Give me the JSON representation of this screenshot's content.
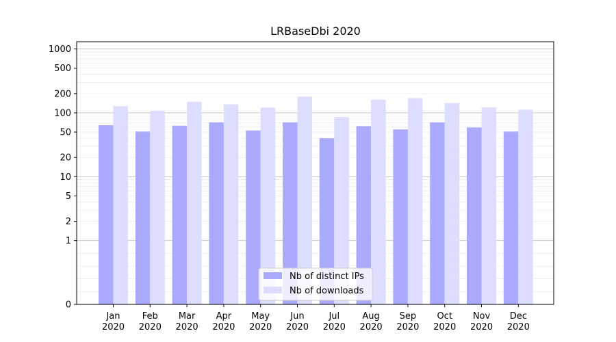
{
  "chart_data": {
    "type": "bar",
    "title": "LRBaseDbi 2020",
    "xlabel": "",
    "ylabel": "",
    "y_scale": "symlog",
    "ylim": [
      0,
      1300
    ],
    "y_ticks": [
      {
        "value": 0,
        "label": "0"
      },
      {
        "value": 1,
        "label": "1"
      },
      {
        "value": 2,
        "label": "2"
      },
      {
        "value": 5,
        "label": "5"
      },
      {
        "value": 10,
        "label": "10"
      },
      {
        "value": 20,
        "label": "20"
      },
      {
        "value": 50,
        "label": "50"
      },
      {
        "value": 100,
        "label": "100"
      },
      {
        "value": 200,
        "label": "200"
      },
      {
        "value": 500,
        "label": "500"
      },
      {
        "value": 1000,
        "label": "1000"
      }
    ],
    "grid": true,
    "categories": [
      {
        "month": "Jan",
        "year": "2020"
      },
      {
        "month": "Feb",
        "year": "2020"
      },
      {
        "month": "Mar",
        "year": "2020"
      },
      {
        "month": "Apr",
        "year": "2020"
      },
      {
        "month": "May",
        "year": "2020"
      },
      {
        "month": "Jun",
        "year": "2020"
      },
      {
        "month": "Jul",
        "year": "2020"
      },
      {
        "month": "Aug",
        "year": "2020"
      },
      {
        "month": "Sep",
        "year": "2020"
      },
      {
        "month": "Oct",
        "year": "2020"
      },
      {
        "month": "Nov",
        "year": "2020"
      },
      {
        "month": "Dec",
        "year": "2020"
      }
    ],
    "series": [
      {
        "name": "Nb of distinct IPs",
        "color": "#aaaaff",
        "values": [
          64,
          51,
          63,
          71,
          53,
          71,
          40,
          62,
          55,
          71,
          59,
          51
        ]
      },
      {
        "name": "Nb of downloads",
        "color": "#ddddff",
        "values": [
          127,
          108,
          149,
          136,
          121,
          180,
          86,
          161,
          170,
          142,
          122,
          112
        ]
      }
    ],
    "legend_position": "bottom-center"
  }
}
